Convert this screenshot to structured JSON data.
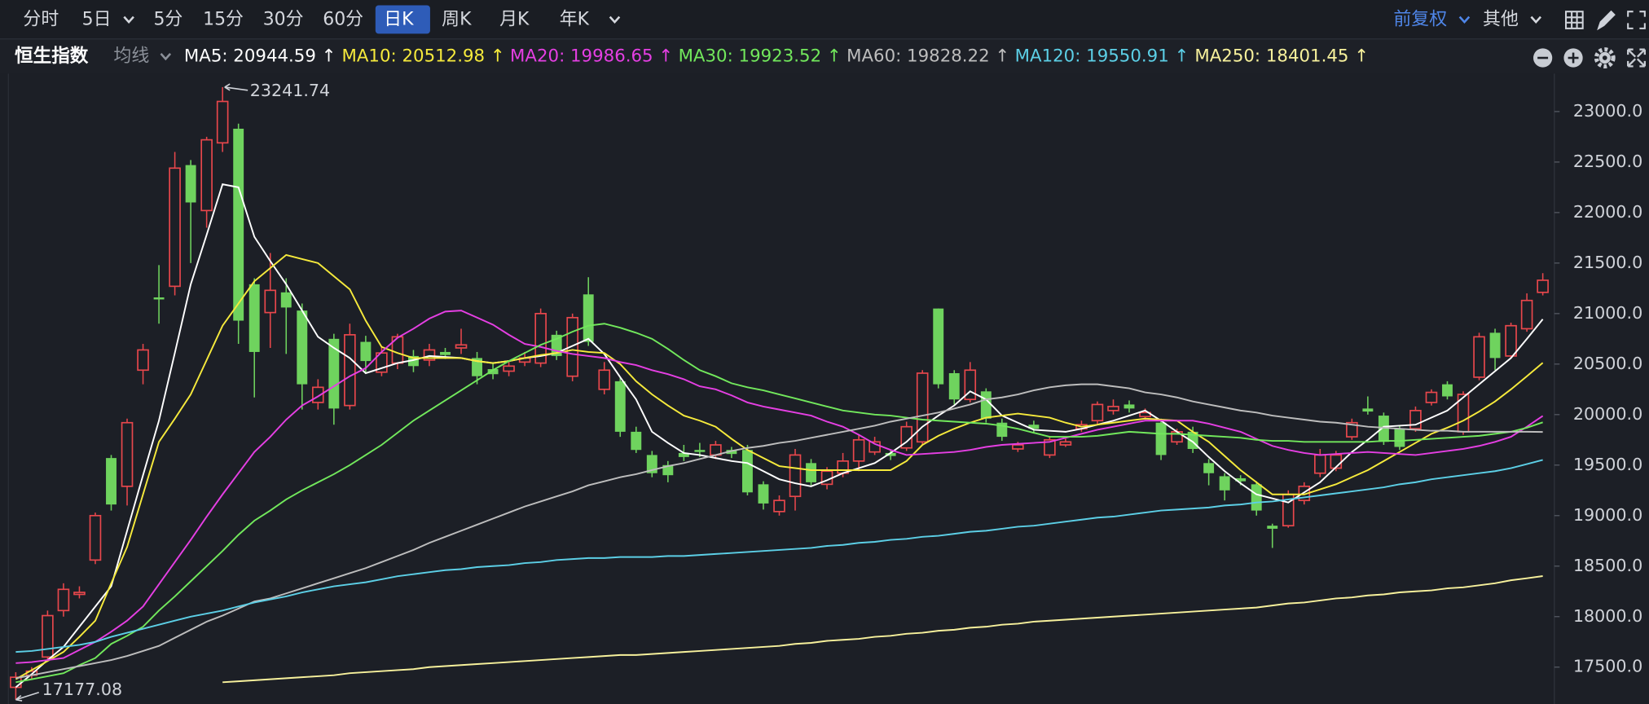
{
  "toolbar": {
    "periods": [
      "分时",
      "5日",
      "5分",
      "15分",
      "30分",
      "60分",
      "日K",
      "周K",
      "月K",
      "年K"
    ],
    "active": "日K",
    "adjust": "前复权",
    "more": "其他"
  },
  "chart_data": {
    "type": "candlestick",
    "title": "恒生指数",
    "indicator": "均线",
    "up_color": "#e8474c",
    "down_color": "#6fd35e",
    "open": [
      17300,
      17420,
      17600,
      18060,
      18220,
      18560,
      19570,
      19290,
      20440,
      21160,
      21270,
      22470,
      22020,
      22690,
      22830,
      21290,
      21010,
      21210,
      21030,
      20120,
      20750,
      20090,
      20720,
      20420,
      20510,
      20580,
      20540,
      20620,
      20660,
      20560,
      20450,
      20430,
      20520,
      20510,
      20790,
      20380,
      21190,
      20250,
      20330,
      19830,
      19600,
      19500,
      19620,
      19650,
      19600,
      19650,
      19650,
      19310,
      19040,
      19190,
      19520,
      19310,
      19420,
      19540,
      19630,
      19620,
      19670,
      19730,
      21050,
      20410,
      20150,
      20230,
      19920,
      19660,
      19900,
      19600,
      19700,
      19860,
      19940,
      20040,
      20100,
      19980,
      19920,
      19730,
      19830,
      19520,
      19390,
      19370,
      19310,
      18900,
      18900,
      19150,
      19420,
      19470,
      19780,
      20060,
      19990,
      19860,
      19860,
      20120,
      20300,
      19830,
      20370,
      20810,
      20580,
      20850,
      21210
    ],
    "high": [
      17450,
      17500,
      18060,
      18330,
      18300,
      19030,
      19600,
      19960,
      20700,
      21480,
      22600,
      22520,
      22750,
      23241.74,
      22880,
      21350,
      21600,
      21350,
      21100,
      20350,
      20800,
      20900,
      20780,
      20680,
      20800,
      20640,
      20700,
      20660,
      20850,
      20620,
      20520,
      20530,
      20620,
      21050,
      20830,
      21000,
      21360,
      20520,
      20360,
      19880,
      19640,
      19540,
      19700,
      19720,
      19740,
      19680,
      19700,
      19340,
      19200,
      19660,
      19560,
      19480,
      19620,
      19800,
      19780,
      19650,
      19930,
      20440,
      21050,
      20440,
      20520,
      20260,
      19960,
      19730,
      19940,
      19780,
      19760,
      19940,
      20130,
      20150,
      20140,
      20060,
      19960,
      19860,
      19880,
      19560,
      19420,
      19400,
      19340,
      18920,
      19250,
      19330,
      19660,
      19640,
      19960,
      20180,
      20020,
      19890,
      20080,
      20250,
      20330,
      20230,
      20810,
      20850,
      20910,
      21200,
      21400
    ],
    "low": [
      17177.08,
      17380,
      17560,
      18000,
      18180,
      18520,
      19050,
      19100,
      20300,
      20900,
      21180,
      21500,
      21850,
      22600,
      20700,
      20170,
      20660,
      20600,
      20050,
      20050,
      19900,
      20050,
      20420,
      20380,
      20450,
      20420,
      20480,
      20550,
      20600,
      20300,
      20350,
      20380,
      20480,
      20470,
      20540,
      20330,
      20680,
      20200,
      19780,
      19620,
      19380,
      19330,
      19540,
      19580,
      19560,
      19570,
      19200,
      19060,
      19000,
      19050,
      19300,
      19260,
      19380,
      19440,
      19600,
      19550,
      19640,
      19700,
      20260,
      20100,
      20120,
      19920,
      19740,
      19630,
      19820,
      19570,
      19680,
      19830,
      19910,
      20000,
      20020,
      19950,
      19550,
      19700,
      19620,
      19300,
      19150,
      19300,
      19000,
      18680,
      18880,
      19110,
      19380,
      19440,
      19750,
      20000,
      19700,
      19650,
      19830,
      20090,
      20150,
      19800,
      20340,
      20440,
      20560,
      20820,
      21180
    ],
    "close": [
      17400,
      17460,
      18010,
      18270,
      18240,
      19000,
      19110,
      19920,
      20640,
      21140,
      22440,
      22100,
      22720,
      23100,
      20930,
      20620,
      21230,
      21060,
      20300,
      20270,
      20060,
      20790,
      20530,
      20610,
      20770,
      20480,
      20640,
      20590,
      20690,
      20380,
      20400,
      20480,
      20560,
      21000,
      20580,
      20960,
      20720,
      20440,
      19830,
      19650,
      19420,
      19400,
      19580,
      19630,
      19700,
      19610,
      19230,
      19120,
      19150,
      19600,
      19330,
      19440,
      19540,
      19750,
      19730,
      19590,
      19880,
      20410,
      20300,
      20150,
      20440,
      19960,
      19780,
      19700,
      19860,
      19750,
      19730,
      19900,
      20100,
      20080,
      20060,
      20020,
      19600,
      19830,
      19660,
      19420,
      19250,
      19340,
      19050,
      18870,
      19210,
      19290,
      19600,
      19600,
      19920,
      20030,
      19730,
      19680,
      20040,
      20220,
      20180,
      20200,
      20770,
      20560,
      20880,
      21130,
      21330
    ],
    "series": [
      {
        "name": "MA5: 20944.59 ↑",
        "color": "#ffffff",
        "values": [
          17300,
          17430,
          17570,
          17700,
          17900,
          18100,
          18300,
          18850,
          19400,
          19940,
          20610,
          21290,
          21780,
          22280,
          22250,
          21760,
          21520,
          21290,
          21030,
          20770,
          20660,
          20560,
          20410,
          20460,
          20510,
          20540,
          20580,
          20570,
          20560,
          20530,
          20510,
          20530,
          20560,
          20580,
          20610,
          20680,
          20750,
          20600,
          20370,
          20150,
          19830,
          19720,
          19620,
          19600,
          19570,
          19540,
          19520,
          19440,
          19360,
          19320,
          19290,
          19350,
          19420,
          19470,
          19520,
          19620,
          19730,
          19880,
          19990,
          20090,
          20230,
          20150,
          19990,
          19920,
          19850,
          19840,
          19830,
          19860,
          19900,
          19940,
          19990,
          20040,
          19940,
          19830,
          19730,
          19580,
          19440,
          19320,
          19210,
          19170,
          19130,
          19230,
          19330,
          19480,
          19630,
          19750,
          19880,
          19890,
          19900,
          19970,
          20040,
          20170,
          20300,
          20430,
          20560,
          20750,
          20944.59
        ]
      },
      {
        "name": "MA10: 20512.98 ↑",
        "color": "#f6ea3c",
        "values": [
          17380,
          17470,
          17560,
          17650,
          17800,
          17960,
          18330,
          18690,
          19210,
          19730,
          19960,
          20200,
          20540,
          20880,
          21100,
          21320,
          21450,
          21580,
          21540,
          21500,
          21370,
          21240,
          20930,
          20670,
          20610,
          20560,
          20560,
          20560,
          20560,
          20530,
          20510,
          20530,
          20560,
          20590,
          20610,
          20640,
          20620,
          20610,
          20500,
          20330,
          20200,
          20090,
          19990,
          19940,
          19880,
          19760,
          19650,
          19570,
          19490,
          19470,
          19450,
          19450,
          19450,
          19450,
          19450,
          19450,
          19540,
          19700,
          19790,
          19860,
          19920,
          19970,
          19990,
          20010,
          19990,
          19970,
          19920,
          19880,
          19900,
          19920,
          19940,
          19960,
          19950,
          19940,
          19830,
          19730,
          19590,
          19450,
          19330,
          19210,
          19210,
          19210,
          19260,
          19310,
          19380,
          19450,
          19540,
          19630,
          19720,
          19810,
          19870,
          19940,
          20030,
          20130,
          20250,
          20380,
          20512.98
        ]
      },
      {
        "name": "MA20: 19986.65 ↑",
        "color": "#e53fe3",
        "values": [
          17540,
          17550,
          17570,
          17590,
          17670,
          17750,
          17850,
          17960,
          18100,
          18320,
          18540,
          18760,
          18990,
          19210,
          19420,
          19630,
          19780,
          19950,
          20090,
          20180,
          20280,
          20380,
          20460,
          20620,
          20760,
          20850,
          20950,
          21020,
          21030,
          20960,
          20890,
          20790,
          20700,
          20670,
          20630,
          20600,
          20580,
          20560,
          20520,
          20490,
          20440,
          20400,
          20350,
          20280,
          20250,
          20190,
          20120,
          20080,
          20050,
          20020,
          19990,
          19930,
          19880,
          19800,
          19710,
          19650,
          19600,
          19610,
          19620,
          19630,
          19650,
          19680,
          19700,
          19710,
          19720,
          19730,
          19770,
          19810,
          19850,
          19880,
          19910,
          19940,
          19940,
          19940,
          19940,
          19910,
          19870,
          19830,
          19760,
          19690,
          19650,
          19620,
          19600,
          19610,
          19620,
          19630,
          19620,
          19610,
          19600,
          19620,
          19640,
          19660,
          19690,
          19730,
          19780,
          19880,
          19986.65
        ]
      },
      {
        "name": "MA30: 19923.52 ↑",
        "color": "#72e85c",
        "values": [
          17350,
          17380,
          17410,
          17440,
          17520,
          17590,
          17730,
          17810,
          17900,
          18060,
          18200,
          18350,
          18500,
          18650,
          18810,
          18950,
          19050,
          19160,
          19250,
          19330,
          19410,
          19500,
          19600,
          19700,
          19820,
          19940,
          20040,
          20140,
          20240,
          20340,
          20440,
          20530,
          20610,
          20690,
          20750,
          20820,
          20880,
          20900,
          20860,
          20810,
          20750,
          20650,
          20540,
          20440,
          20380,
          20310,
          20270,
          20240,
          20200,
          20160,
          20120,
          20080,
          20040,
          20020,
          20000,
          19990,
          19970,
          19950,
          19940,
          19930,
          19920,
          19910,
          19890,
          19860,
          19820,
          19780,
          19780,
          19780,
          19790,
          19810,
          19830,
          19820,
          19810,
          19810,
          19800,
          19790,
          19780,
          19770,
          19750,
          19740,
          19740,
          19730,
          19730,
          19730,
          19730,
          19730,
          19740,
          19740,
          19750,
          19760,
          19770,
          19780,
          19790,
          19810,
          19830,
          19870,
          19923.52
        ]
      },
      {
        "name": "MA60: 19828.22 ↑",
        "color": "#bdbdbd",
        "values": [
          17390,
          17420,
          17450,
          17480,
          17510,
          17540,
          17570,
          17610,
          17660,
          17710,
          17790,
          17870,
          17950,
          18010,
          18080,
          18150,
          18180,
          18230,
          18280,
          18330,
          18380,
          18430,
          18480,
          18540,
          18600,
          18660,
          18730,
          18790,
          18850,
          18910,
          18970,
          19030,
          19090,
          19140,
          19190,
          19240,
          19300,
          19340,
          19380,
          19410,
          19450,
          19490,
          19520,
          19560,
          19600,
          19640,
          19670,
          19690,
          19720,
          19740,
          19770,
          19800,
          19830,
          19860,
          19890,
          19930,
          19960,
          19990,
          20020,
          20060,
          20100,
          20150,
          20170,
          20200,
          20240,
          20270,
          20290,
          20300,
          20300,
          20280,
          20260,
          20220,
          20200,
          20170,
          20130,
          20100,
          20070,
          20040,
          20020,
          19990,
          19970,
          19950,
          19930,
          19920,
          19900,
          19880,
          19870,
          19860,
          19850,
          19840,
          19840,
          19830,
          19830,
          19830,
          19830,
          19830,
          19828.22
        ]
      },
      {
        "name": "MA120: 19550.91 ↑",
        "color": "#5ccfe6",
        "values": [
          17650,
          17660,
          17680,
          17700,
          17720,
          17750,
          17800,
          17840,
          17880,
          17920,
          17960,
          18000,
          18030,
          18060,
          18100,
          18140,
          18170,
          18200,
          18240,
          18270,
          18300,
          18320,
          18340,
          18370,
          18400,
          18420,
          18440,
          18460,
          18470,
          18490,
          18500,
          18510,
          18530,
          18540,
          18560,
          18570,
          18580,
          18580,
          18590,
          18590,
          18590,
          18600,
          18600,
          18610,
          18620,
          18630,
          18640,
          18650,
          18660,
          18670,
          18680,
          18700,
          18710,
          18730,
          18740,
          18760,
          18770,
          18790,
          18800,
          18820,
          18840,
          18850,
          18870,
          18890,
          18900,
          18920,
          18940,
          18960,
          18980,
          18990,
          19010,
          19030,
          19050,
          19060,
          19070,
          19080,
          19100,
          19110,
          19130,
          19140,
          19160,
          19180,
          19200,
          19220,
          19240,
          19260,
          19280,
          19310,
          19330,
          19360,
          19380,
          19400,
          19420,
          19440,
          19470,
          19510,
          19550.91
        ]
      },
      {
        "name": "MA250: 18401.45 ↑",
        "color": "#f7f19c",
        "values": [
          null,
          null,
          null,
          null,
          null,
          null,
          null,
          null,
          null,
          null,
          null,
          null,
          null,
          17350,
          17360,
          17370,
          17380,
          17390,
          17400,
          17410,
          17420,
          17440,
          17450,
          17460,
          17470,
          17480,
          17500,
          17510,
          17520,
          17530,
          17540,
          17550,
          17560,
          17570,
          17580,
          17590,
          17600,
          17610,
          17620,
          17620,
          17630,
          17640,
          17650,
          17660,
          17670,
          17680,
          17690,
          17700,
          17710,
          17730,
          17740,
          17760,
          17770,
          17780,
          17800,
          17810,
          17830,
          17840,
          17860,
          17870,
          17890,
          17900,
          17920,
          17930,
          17950,
          17960,
          17970,
          17980,
          17990,
          18000,
          18010,
          18020,
          18030,
          18040,
          18050,
          18060,
          18070,
          18080,
          18090,
          18110,
          18130,
          18140,
          18160,
          18180,
          18190,
          18210,
          18220,
          18240,
          18250,
          18260,
          18280,
          18290,
          18310,
          18330,
          18360,
          18380,
          18401.45
        ]
      }
    ],
    "ylim": [
      17135,
      23375
    ],
    "yticks": [
      {
        "value": 17500,
        "label": "17500.0"
      },
      {
        "value": 18000,
        "label": "18000.0"
      },
      {
        "value": 18500,
        "label": "18500.0"
      },
      {
        "value": 19000,
        "label": "19000.0"
      },
      {
        "value": 19500,
        "label": "19500.0"
      },
      {
        "value": 20000,
        "label": "20000.0"
      },
      {
        "value": 20500,
        "label": "20500.0"
      },
      {
        "value": 21000,
        "label": "21000.0"
      },
      {
        "value": 21500,
        "label": "21500.0"
      },
      {
        "value": 22000,
        "label": "22000.0"
      },
      {
        "value": 22500,
        "label": "22500.0"
      },
      {
        "value": 23000,
        "label": "23000.0"
      }
    ],
    "grid": false
  }
}
